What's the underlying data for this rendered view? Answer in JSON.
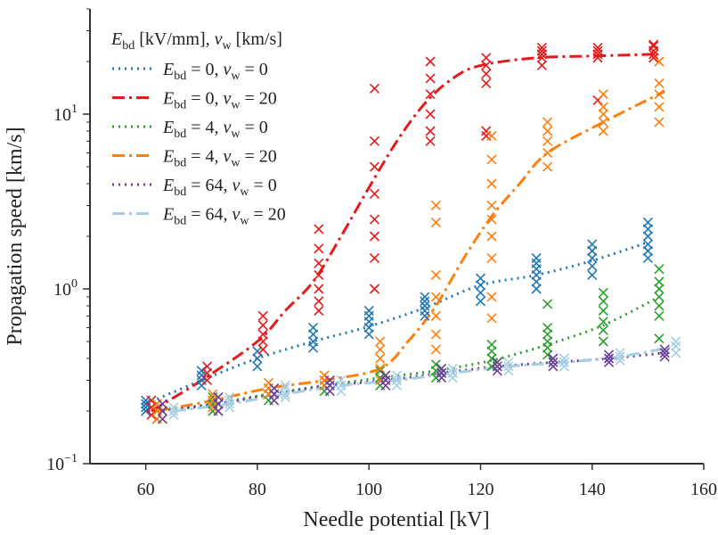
{
  "chart_data": {
    "type": "scatter",
    "title": "",
    "xlabel": "Needle potential [kV]",
    "ylabel": "Propagation speed [km/s]",
    "xlim": [
      50,
      160
    ],
    "ylim": [
      0.1,
      40
    ],
    "yscale": "log",
    "grid": false,
    "x_ticks": [
      {
        "value": 60,
        "label": "60"
      },
      {
        "value": 80,
        "label": "80"
      },
      {
        "value": 100,
        "label": "100"
      },
      {
        "value": 120,
        "label": "120"
      },
      {
        "value": 140,
        "label": "140"
      },
      {
        "value": 160,
        "label": "160"
      }
    ],
    "y_ticks": [
      {
        "value": 0.1,
        "base": "10",
        "exp": "−1"
      },
      {
        "value": 1,
        "base": "10",
        "exp": "0"
      },
      {
        "value": 10,
        "base": "10",
        "exp": "1"
      }
    ],
    "legend": {
      "placement": "top-left",
      "title": {
        "e_sym": "E",
        "e_sub": "bd",
        "e_unit": " [kV/mm], ",
        "v_sym": "v",
        "v_sub": "w",
        "v_unit": " [km/s]"
      },
      "entries": [
        {
          "e_val": " =  0, ",
          "v_val": " =  0"
        },
        {
          "e_val": " =  0, ",
          "v_val": " = 20"
        },
        {
          "e_val": " =  4, ",
          "v_val": " =  0"
        },
        {
          "e_val": " =  4, ",
          "v_val": " = 20"
        },
        {
          "e_val": " = 64, ",
          "v_val": " =  0"
        },
        {
          "e_val": " = 64, ",
          "v_val": " = 20"
        }
      ]
    },
    "series": [
      {
        "name": "E_bd = 0, v_w = 0",
        "color": "#1f77b4",
        "linestyle": "dotted",
        "fit_x": [
          60,
          70,
          80,
          90,
          100,
          110,
          120,
          130,
          140,
          150
        ],
        "fit_y": [
          0.22,
          0.3,
          0.4,
          0.5,
          0.61,
          0.78,
          1.05,
          1.2,
          1.45,
          1.85
        ],
        "points": [
          {
            "x": 60,
            "y": [
              0.2,
              0.21,
              0.22,
              0.23
            ]
          },
          {
            "x": 70,
            "y": [
              0.28,
              0.3,
              0.32,
              0.34
            ]
          },
          {
            "x": 80,
            "y": [
              0.36,
              0.4,
              0.44
            ]
          },
          {
            "x": 90,
            "y": [
              0.46,
              0.5,
              0.55,
              0.6
            ]
          },
          {
            "x": 100,
            "y": [
              0.55,
              0.6,
              0.65,
              0.7,
              0.75
            ]
          },
          {
            "x": 110,
            "y": [
              0.7,
              0.75,
              0.8,
              0.85,
              0.9
            ]
          },
          {
            "x": 120,
            "y": [
              0.85,
              0.95,
              1.05,
              1.15
            ]
          },
          {
            "x": 130,
            "y": [
              1.0,
              1.1,
              1.2,
              1.3,
              1.4,
              1.5
            ]
          },
          {
            "x": 140,
            "y": [
              1.2,
              1.35,
              1.5,
              1.65,
              1.8
            ]
          },
          {
            "x": 150,
            "y": [
              1.5,
              1.65,
              1.8,
              2.0,
              2.2,
              2.4
            ]
          }
        ]
      },
      {
        "name": "E_bd = 0, v_w = 20",
        "color": "#e41a1c",
        "linestyle": "dashdot",
        "fit_x": [
          61,
          70,
          80,
          85,
          90,
          95,
          100,
          105,
          110,
          115,
          120,
          130,
          140,
          151
        ],
        "fit_y": [
          0.2,
          0.3,
          0.5,
          0.75,
          1.1,
          2.0,
          3.8,
          7.0,
          11.5,
          16.0,
          19.0,
          21.0,
          21.5,
          22.0
        ],
        "points": [
          {
            "x": 61,
            "y": [
              0.19,
              0.21,
              0.23
            ]
          },
          {
            "x": 71,
            "y": [
              0.3,
              0.33,
              0.36
            ]
          },
          {
            "x": 81,
            "y": [
              0.45,
              0.5,
              0.55,
              0.62,
              0.7
            ]
          },
          {
            "x": 91,
            "y": [
              0.75,
              0.85,
              1.0,
              1.2,
              1.4,
              1.7,
              2.2
            ]
          },
          {
            "x": 101,
            "y": [
              1.0,
              1.5,
              2.0,
              2.5,
              3.5,
              5.0,
              7.0,
              14.0
            ]
          },
          {
            "x": 111,
            "y": [
              7.0,
              8.0,
              10.0,
              13.0,
              16.0,
              20.0
            ]
          },
          {
            "x": 121,
            "y": [
              7.5,
              8.0,
              15.0,
              17.0,
              19.0,
              21.0
            ]
          },
          {
            "x": 131,
            "y": [
              19.0,
              21.0,
              22.0,
              23.0,
              24.0
            ]
          },
          {
            "x": 141,
            "y": [
              12.0,
              21.0,
              22.0,
              23.0,
              24.0
            ]
          },
          {
            "x": 151,
            "y": [
              21.0,
              22.0,
              23.0,
              24.5,
              25.0
            ]
          }
        ]
      },
      {
        "name": "E_bd = 4, v_w = 0",
        "color": "#2ca02c",
        "linestyle": "dotted",
        "fit_x": [
          62,
          72,
          82,
          92,
          102,
          112,
          122,
          132,
          142,
          152
        ],
        "fit_y": [
          0.2,
          0.22,
          0.25,
          0.28,
          0.31,
          0.34,
          0.39,
          0.48,
          0.62,
          0.9
        ],
        "points": [
          {
            "x": 62,
            "y": [
              0.18,
              0.2,
              0.22
            ]
          },
          {
            "x": 72,
            "y": [
              0.2,
              0.22,
              0.24
            ]
          },
          {
            "x": 82,
            "y": [
              0.23,
              0.25,
              0.27
            ]
          },
          {
            "x": 92,
            "y": [
              0.26,
              0.28,
              0.3
            ]
          },
          {
            "x": 102,
            "y": [
              0.28,
              0.31,
              0.34
            ]
          },
          {
            "x": 112,
            "y": [
              0.31,
              0.34,
              0.37
            ]
          },
          {
            "x": 122,
            "y": [
              0.36,
              0.4,
              0.44,
              0.48
            ]
          },
          {
            "x": 132,
            "y": [
              0.42,
              0.46,
              0.5,
              0.55,
              0.6,
              0.82
            ]
          },
          {
            "x": 142,
            "y": [
              0.5,
              0.58,
              0.65,
              0.75,
              0.85,
              0.95
            ]
          },
          {
            "x": 152,
            "y": [
              0.52,
              0.7,
              0.8,
              0.9,
              1.0,
              1.1,
              1.3
            ]
          }
        ]
      },
      {
        "name": "E_bd = 4, v_w = 20",
        "color": "#ff7f0e",
        "linestyle": "dashdot",
        "fit_x": [
          62,
          72,
          82,
          92,
          102,
          107,
          112,
          117,
          122,
          127,
          132,
          142,
          153
        ],
        "fit_y": [
          0.2,
          0.23,
          0.27,
          0.3,
          0.35,
          0.5,
          0.8,
          1.5,
          2.6,
          4.0,
          6.0,
          9.0,
          13.5
        ],
        "points": [
          {
            "x": 62,
            "y": [
              0.18,
              0.2,
              0.22
            ]
          },
          {
            "x": 72,
            "y": [
              0.21,
              0.23,
              0.25
            ]
          },
          {
            "x": 82,
            "y": [
              0.25,
              0.27,
              0.29
            ]
          },
          {
            "x": 92,
            "y": [
              0.28,
              0.3,
              0.32
            ]
          },
          {
            "x": 102,
            "y": [
              0.3,
              0.35,
              0.4,
              0.45,
              0.5
            ]
          },
          {
            "x": 112,
            "y": [
              0.45,
              0.55,
              0.7,
              0.9,
              1.2,
              2.4,
              3.0
            ]
          },
          {
            "x": 122,
            "y": [
              0.68,
              0.9,
              1.5,
              2.0,
              2.5,
              3.0,
              4.0,
              5.5,
              7.5
            ]
          },
          {
            "x": 132,
            "y": [
              5.0,
              6.0,
              7.0,
              8.0,
              9.0
            ]
          },
          {
            "x": 142,
            "y": [
              8.0,
              9.0,
              10.0,
              11.0,
              13.0
            ]
          },
          {
            "x": 152,
            "y": [
              9.0,
              11.0,
              13.0,
              15.0,
              20.0
            ]
          }
        ]
      },
      {
        "name": "E_bd = 64, v_w = 0",
        "color": "#6a3d9a",
        "linestyle": "dotted",
        "fit_x": [
          63,
          73,
          83,
          93,
          103,
          113,
          123,
          133,
          143,
          153
        ],
        "fit_y": [
          0.2,
          0.22,
          0.25,
          0.28,
          0.3,
          0.33,
          0.36,
          0.38,
          0.4,
          0.43
        ],
        "points": [
          {
            "x": 63,
            "y": [
              0.18,
              0.2,
              0.22
            ]
          },
          {
            "x": 73,
            "y": [
              0.2,
              0.22,
              0.24
            ]
          },
          {
            "x": 83,
            "y": [
              0.23,
              0.25,
              0.27
            ]
          },
          {
            "x": 93,
            "y": [
              0.26,
              0.28,
              0.3
            ]
          },
          {
            "x": 103,
            "y": [
              0.28,
              0.3,
              0.32
            ]
          },
          {
            "x": 113,
            "y": [
              0.31,
              0.33,
              0.35
            ]
          },
          {
            "x": 123,
            "y": [
              0.34,
              0.36,
              0.38
            ]
          },
          {
            "x": 133,
            "y": [
              0.36,
              0.38,
              0.4
            ]
          },
          {
            "x": 143,
            "y": [
              0.38,
              0.4,
              0.42
            ]
          },
          {
            "x": 153,
            "y": [
              0.41,
              0.43,
              0.45
            ]
          }
        ]
      },
      {
        "name": "E_bd = 64, v_w = 20",
        "color": "#a6cee3",
        "linestyle": "dashdot",
        "fit_x": [
          65,
          75,
          85,
          95,
          105,
          115,
          125,
          135,
          145,
          155
        ],
        "fit_y": [
          0.2,
          0.22,
          0.25,
          0.28,
          0.3,
          0.33,
          0.36,
          0.38,
          0.41,
          0.47
        ],
        "points": [
          {
            "x": 65,
            "y": [
              0.19,
              0.2,
              0.21
            ]
          },
          {
            "x": 75,
            "y": [
              0.21,
              0.22,
              0.23,
              0.24
            ]
          },
          {
            "x": 85,
            "y": [
              0.24,
              0.25,
              0.27,
              0.28
            ]
          },
          {
            "x": 95,
            "y": [
              0.26,
              0.28,
              0.3
            ]
          },
          {
            "x": 105,
            "y": [
              0.28,
              0.3,
              0.32
            ]
          },
          {
            "x": 115,
            "y": [
              0.31,
              0.33,
              0.35
            ]
          },
          {
            "x": 125,
            "y": [
              0.34,
              0.36,
              0.38
            ]
          },
          {
            "x": 135,
            "y": [
              0.36,
              0.38,
              0.4
            ]
          },
          {
            "x": 145,
            "y": [
              0.39,
              0.41,
              0.43
            ]
          },
          {
            "x": 155,
            "y": [
              0.43,
              0.47,
              0.5
            ]
          }
        ]
      }
    ]
  }
}
